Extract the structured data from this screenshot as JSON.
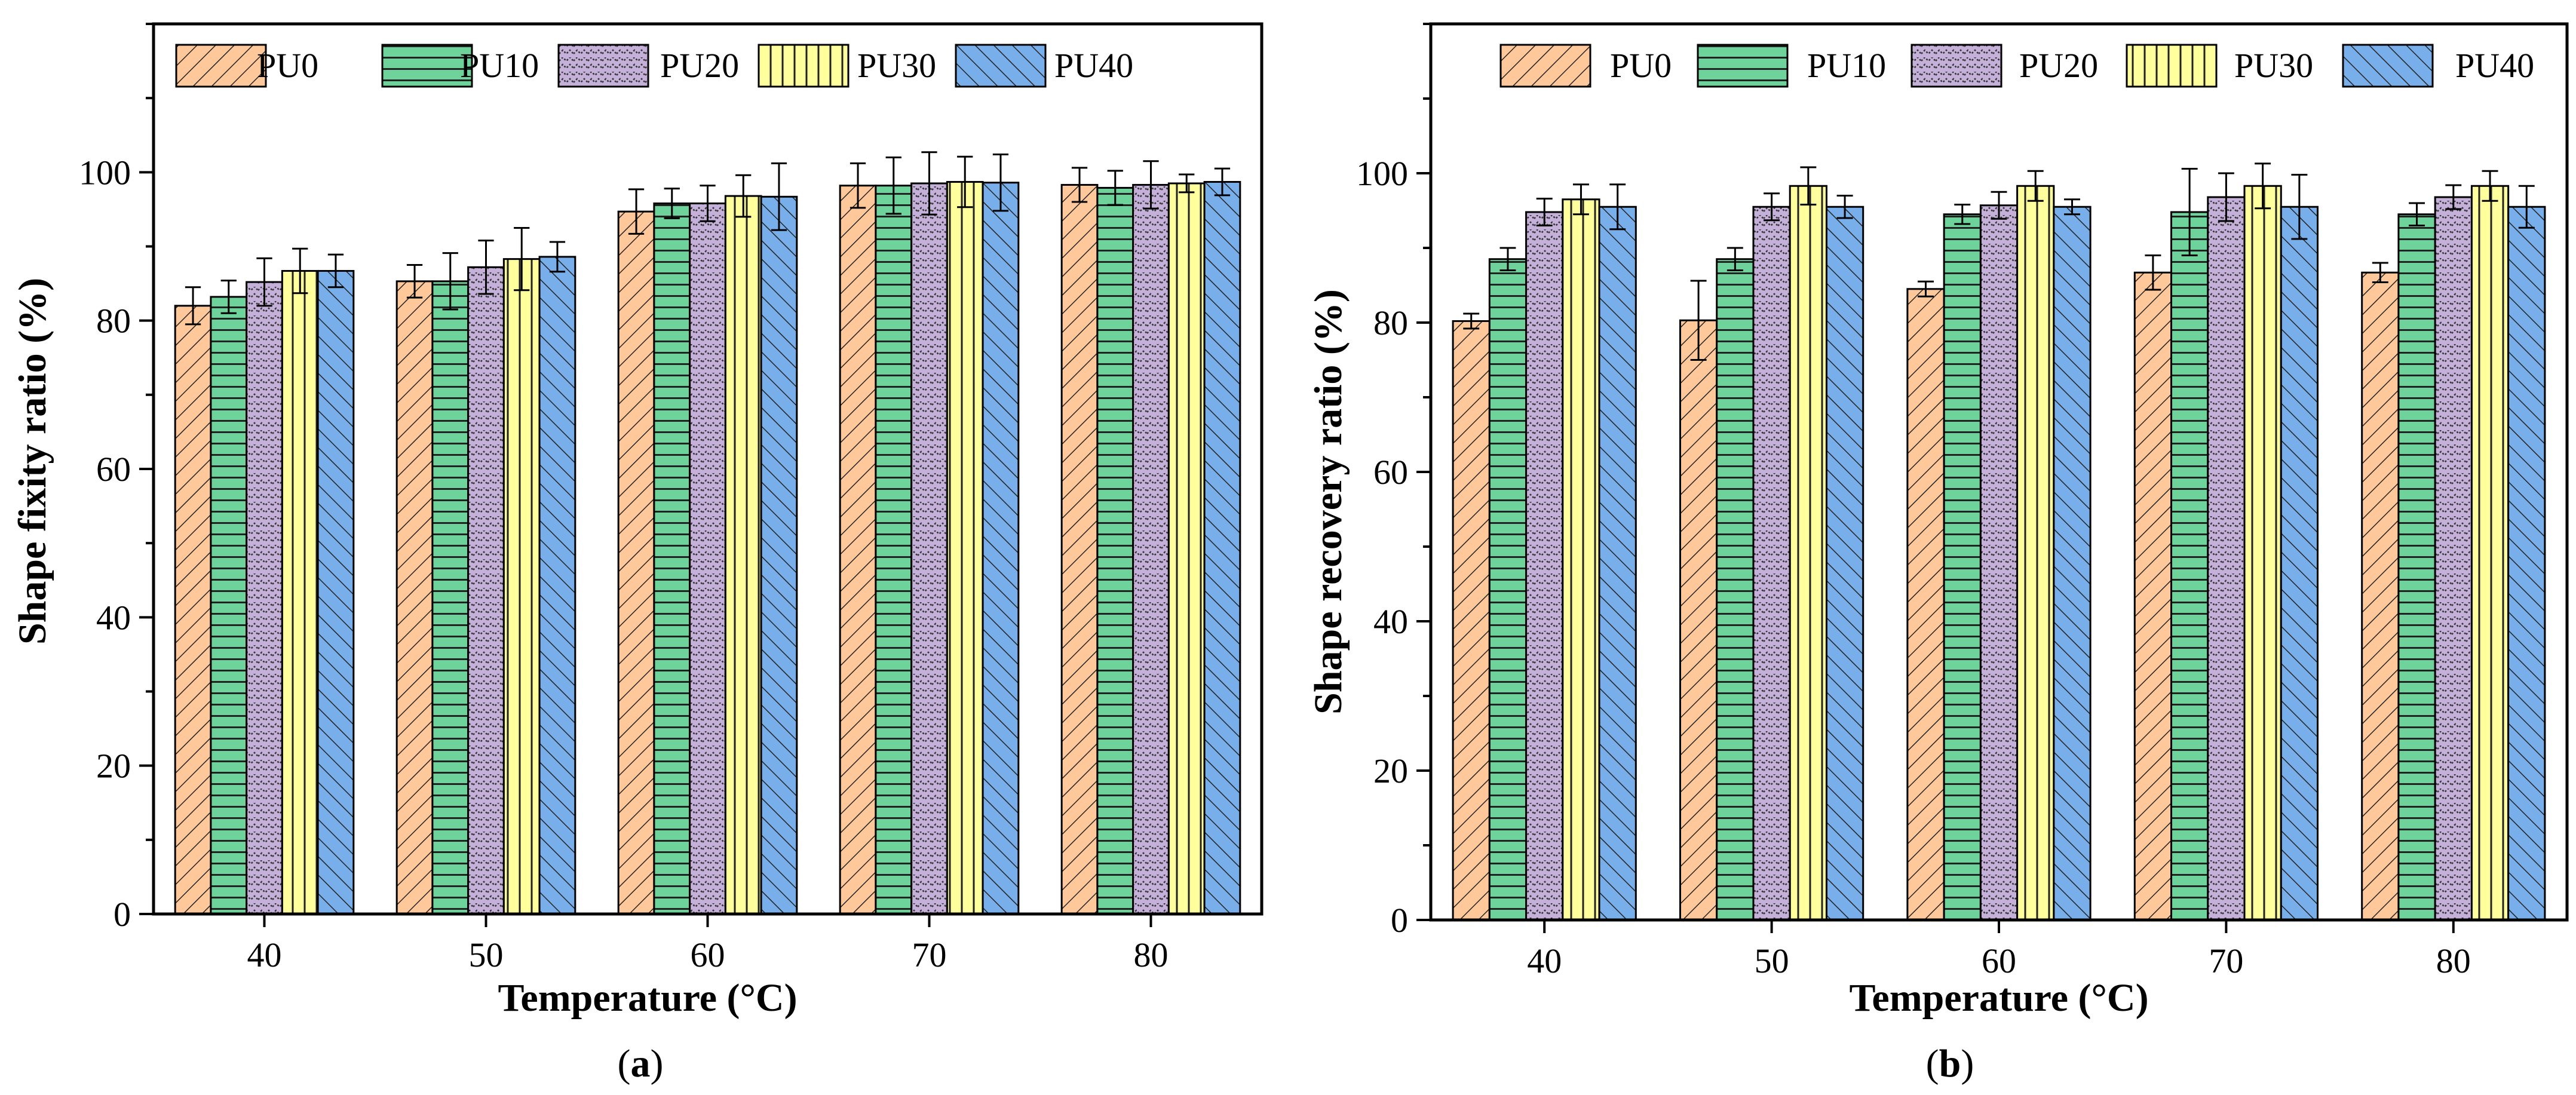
{
  "chart_data": [
    {
      "type": "bar",
      "panel_label": "a",
      "xlabel": "Temperature (°C)",
      "ylabel": "Shape fixity ratio (%)",
      "ylim": [
        0,
        120
      ],
      "yticks": [
        0,
        20,
        40,
        60,
        80,
        100
      ],
      "categories": [
        "40",
        "50",
        "60",
        "70",
        "80"
      ],
      "legend_position": "top-left",
      "series": [
        {
          "name": "PU0",
          "values": [
            82.0,
            85.3,
            94.7,
            98.2,
            98.3
          ],
          "errors": [
            2.5,
            2.2,
            3.0,
            3.0,
            2.3
          ]
        },
        {
          "name": "PU10",
          "values": [
            83.2,
            85.3,
            95.8,
            98.2,
            97.9
          ],
          "errors": [
            2.2,
            3.8,
            2.0,
            3.8,
            2.3
          ]
        },
        {
          "name": "PU20",
          "values": [
            85.2,
            87.2,
            95.8,
            98.5,
            98.3
          ],
          "errors": [
            3.2,
            3.6,
            2.4,
            4.2,
            3.2
          ]
        },
        {
          "name": "PU30",
          "values": [
            86.7,
            88.3,
            96.8,
            98.7,
            98.5
          ],
          "errors": [
            3.0,
            4.2,
            2.8,
            3.4,
            1.2
          ]
        },
        {
          "name": "PU40",
          "values": [
            86.7,
            88.6,
            96.7,
            98.6,
            98.7
          ],
          "errors": [
            2.2,
            2.0,
            4.5,
            3.8,
            1.8
          ]
        }
      ]
    },
    {
      "type": "bar",
      "panel_label": "b",
      "xlabel": "Temperature (°C)",
      "ylabel": "Shape recovery ratio (%)",
      "ylim": [
        0,
        120
      ],
      "yticks": [
        0,
        20,
        40,
        60,
        80,
        100
      ],
      "categories": [
        "40",
        "50",
        "60",
        "70",
        "80"
      ],
      "legend_position": "top",
      "series": [
        {
          "name": "PU0",
          "values": [
            80.2,
            80.3,
            84.5,
            86.7,
            86.7
          ],
          "errors": [
            1.0,
            5.3,
            1.0,
            2.3,
            1.3
          ]
        },
        {
          "name": "PU10",
          "values": [
            88.5,
            88.5,
            94.5,
            94.8,
            94.5
          ],
          "errors": [
            1.5,
            1.5,
            1.3,
            5.8,
            1.5
          ]
        },
        {
          "name": "PU20",
          "values": [
            94.8,
            95.5,
            95.7,
            96.8,
            96.8
          ],
          "errors": [
            1.8,
            1.8,
            1.8,
            3.2,
            1.6
          ]
        },
        {
          "name": "PU30",
          "values": [
            96.5,
            98.3,
            98.3,
            98.3,
            98.3
          ],
          "errors": [
            2.0,
            2.5,
            2.0,
            3.0,
            2.0
          ]
        },
        {
          "name": "PU40",
          "values": [
            95.5,
            95.5,
            95.5,
            95.5,
            95.5
          ],
          "errors": [
            3.0,
            1.5,
            1.0,
            4.3,
            2.8
          ]
        }
      ]
    }
  ],
  "colors": {
    "PU0": "#ffc89a",
    "PU10": "#6dd39a",
    "PU20": "#c4b0d8",
    "PU30": "#ffff9e",
    "PU40": "#78aeea",
    "axis": "#000000"
  }
}
